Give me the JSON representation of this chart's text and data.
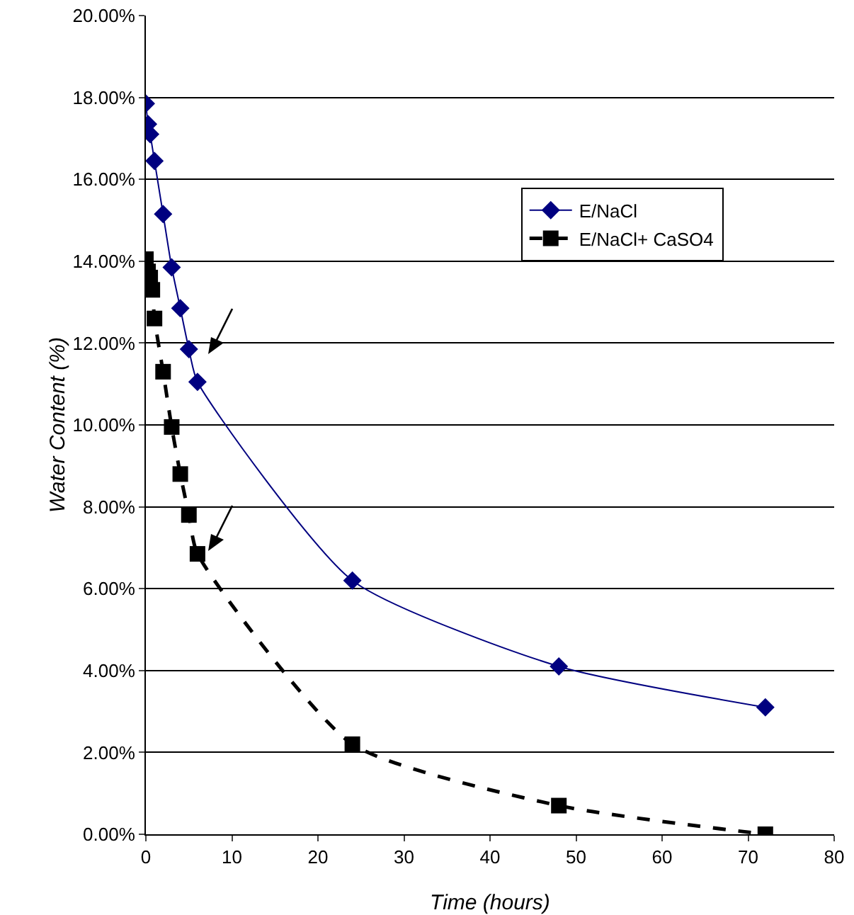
{
  "chart_data": {
    "type": "line",
    "xlabel": "Time (hours)",
    "ylabel": "Water Content (%)",
    "xlim": [
      0,
      80
    ],
    "xticks": [
      0,
      10,
      20,
      30,
      40,
      50,
      60,
      70,
      80
    ],
    "ylim": [
      0,
      20
    ],
    "yticks": [
      {
        "value": 0,
        "label": "0.00%"
      },
      {
        "value": 2,
        "label": "2.00%"
      },
      {
        "value": 4,
        "label": "4.00%"
      },
      {
        "value": 6,
        "label": "6.00%"
      },
      {
        "value": 8,
        "label": "8.00%"
      },
      {
        "value": 10,
        "label": "10.00%"
      },
      {
        "value": 12,
        "label": "12.00%"
      },
      {
        "value": 14,
        "label": "14.00%"
      },
      {
        "value": 16,
        "label": "16.00%"
      },
      {
        "value": 18,
        "label": "18.00%"
      },
      {
        "value": 20,
        "label": "20.00%"
      }
    ],
    "grid": "y",
    "legend": "top right",
    "series": [
      {
        "name": "E/NaCl",
        "color": "#000080",
        "marker": "diamond",
        "line_style": "solid",
        "x": [
          0,
          0.25,
          0.5,
          1,
          2,
          3,
          4,
          5,
          6,
          24,
          48,
          72
        ],
        "values": [
          17.85,
          17.35,
          17.1,
          16.45,
          15.15,
          13.85,
          12.85,
          11.85,
          11.05,
          6.2,
          4.1,
          3.1
        ]
      },
      {
        "name": "E/NaCl+ CaSO4",
        "color": "#000000",
        "marker": "square",
        "line_style": "dashed",
        "x": [
          0,
          0.25,
          0.5,
          0.75,
          1,
          2,
          3,
          4,
          5,
          6,
          24,
          48,
          72
        ],
        "values": [
          14.05,
          13.75,
          13.6,
          13.3,
          12.6,
          11.3,
          9.95,
          8.8,
          7.8,
          6.85,
          2.2,
          0.7,
          0.0
        ]
      }
    ]
  }
}
